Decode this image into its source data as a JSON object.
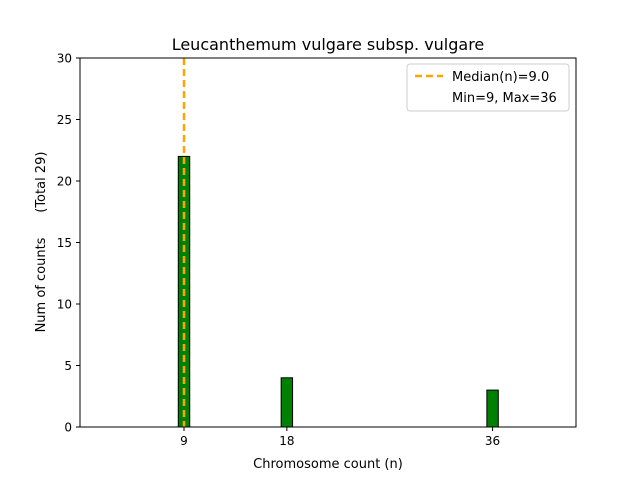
{
  "chart_data": {
    "type": "bar",
    "title": "Leucanthemum vulgare subsp. vulgare",
    "xlabel": "Chromosome count (n)",
    "ylabel": "Num of counts      (Total 29)",
    "x": [
      9,
      18,
      36
    ],
    "values": [
      22,
      4,
      3
    ],
    "xlim": [
      -0.1,
      43.3
    ],
    "ylim": [
      0,
      30
    ],
    "xticks": [
      9,
      18,
      36
    ],
    "yticks": [
      0,
      5,
      10,
      15,
      20,
      25,
      30
    ],
    "bar_color": "#008000",
    "median": 9.0,
    "median_color": "#FFA500",
    "legend": {
      "placement": "top-right",
      "entries": [
        "Median(n)=9.0",
        "Min=9, Max=36"
      ]
    },
    "grid": false
  }
}
